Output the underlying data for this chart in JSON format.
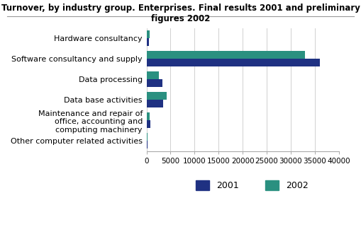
{
  "title": "Turnover, by industry group. Enterprises. Final results 2001 and preliminary figures 2002",
  "categories": [
    "Hardware consultancy",
    "Software consultancy and supply",
    "Data processing",
    "Data base activities",
    "Maintenance and repair of\noffice, accounting and\ncomputing machinery",
    "Other computer related activities"
  ],
  "values_2001": [
    500,
    36000,
    3300,
    3500,
    800,
    200
  ],
  "values_2002": [
    650,
    33000,
    2600,
    4200,
    650,
    150
  ],
  "color_2001": "#1f3182",
  "color_2002": "#2a9080",
  "xlim": [
    0,
    40000
  ],
  "xticks": [
    0,
    5000,
    10000,
    15000,
    20000,
    25000,
    30000,
    35000,
    40000
  ],
  "xtick_labels": [
    "0",
    "5000",
    "10000",
    "15000",
    "20000",
    "25000",
    "30000",
    "35000",
    "40000"
  ],
  "legend_labels": [
    "2001",
    "2002"
  ],
  "background_color": "#ffffff",
  "grid_color": "#d0d0d0",
  "title_fontsize": 8.5,
  "tick_fontsize": 7.5,
  "label_fontsize": 8.0,
  "bar_height": 0.38
}
